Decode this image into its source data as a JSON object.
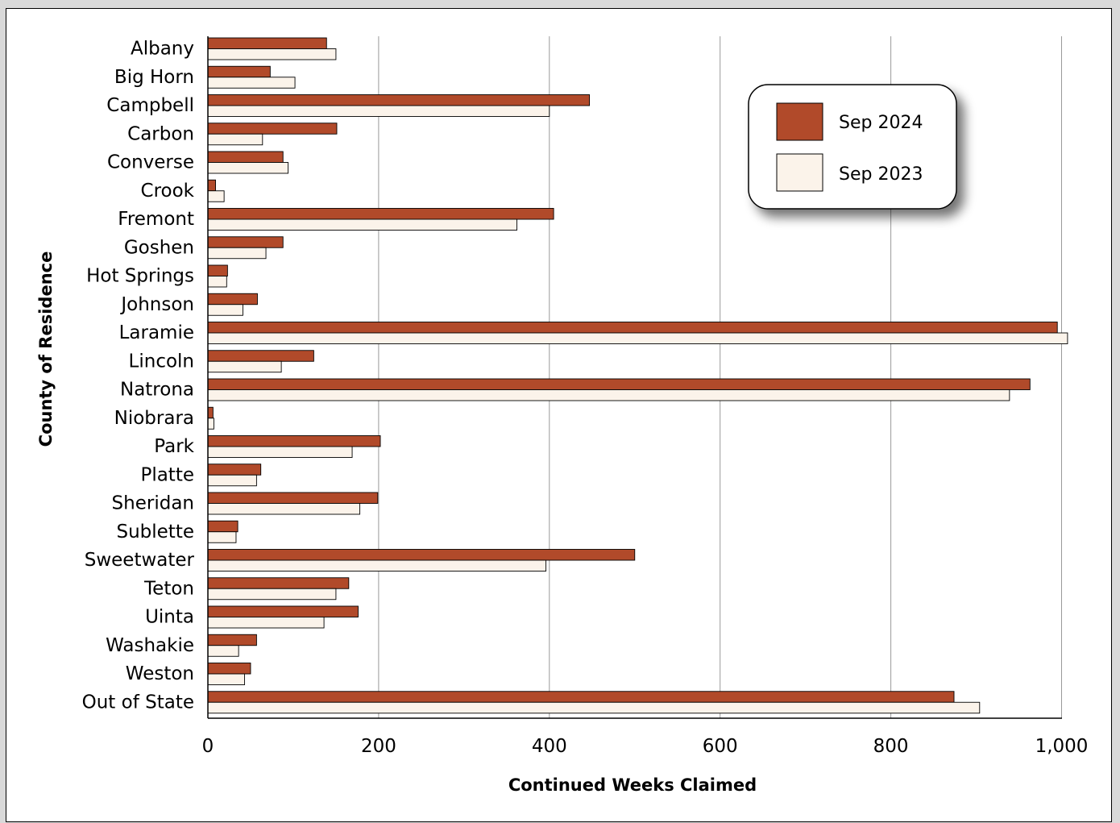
{
  "chart_data": {
    "type": "bar",
    "orientation": "horizontal",
    "xlabel": "Continued Weeks Claimed",
    "ylabel": "County of Residence",
    "xlim": [
      0,
      1000
    ],
    "xticks": [
      0,
      200,
      400,
      600,
      800,
      1000
    ],
    "xtick_labels": [
      "0",
      "200",
      "400",
      "600",
      "800",
      "1,000"
    ],
    "grid": "vertical",
    "legend_position": "top-right",
    "categories": [
      "Albany",
      "Big Horn",
      "Campbell",
      "Carbon",
      "Converse",
      "Crook",
      "Fremont",
      "Goshen",
      "Hot Springs",
      "Johnson",
      "Laramie",
      "Lincoln",
      "Natrona",
      "Niobrara",
      "Park",
      "Platte",
      "Sheridan",
      "Sublette",
      "Sweetwater",
      "Teton",
      "Uinta",
      "Washakie",
      "Weston",
      "Out of State"
    ],
    "series": [
      {
        "name": "Sep 2024",
        "color": "#b14a2a",
        "values": [
          139,
          73,
          447,
          151,
          88,
          9,
          405,
          88,
          23,
          58,
          995,
          124,
          963,
          6,
          202,
          62,
          199,
          35,
          500,
          165,
          176,
          57,
          50,
          874
        ]
      },
      {
        "name": "Sep 2023",
        "color": "#fbf3ea",
        "values": [
          150,
          102,
          400,
          64,
          94,
          19,
          362,
          68,
          22,
          41,
          1007,
          86,
          939,
          7,
          169,
          57,
          178,
          33,
          396,
          150,
          136,
          36,
          43,
          904
        ]
      }
    ]
  }
}
